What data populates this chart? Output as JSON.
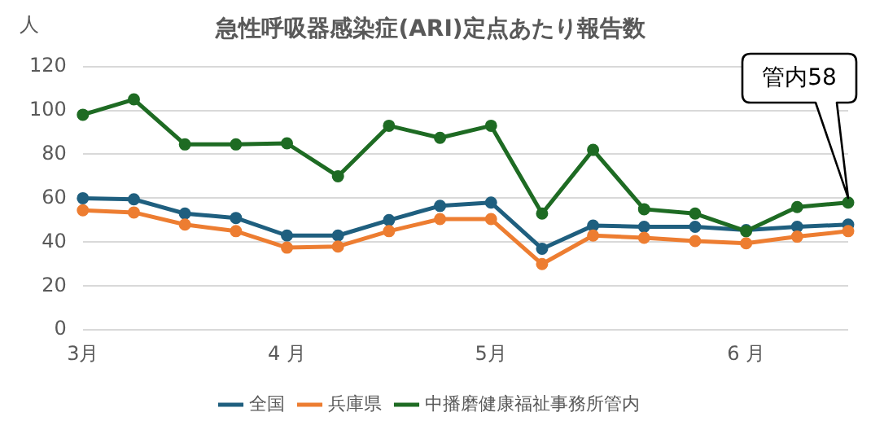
{
  "chart_data": {
    "type": "line",
    "title": "急性呼吸器感染症(ARI)定点あたり報告数",
    "ylabel": "人",
    "categories": [
      "3月",
      null,
      null,
      null,
      "4 月",
      null,
      null,
      null,
      "5月",
      null,
      null,
      null,
      null,
      "6 月",
      null,
      null
    ],
    "series": [
      {
        "name": "全国",
        "color": "#1f5f7f",
        "values": [
          60,
          59.5,
          53,
          51,
          43,
          43,
          50,
          56.5,
          58,
          37,
          47.5,
          47,
          47,
          45.5,
          47,
          48
        ]
      },
      {
        "name": "兵庫県",
        "color": "#ed7d31",
        "values": [
          54.5,
          53.5,
          48,
          45,
          37.5,
          38,
          45,
          50.5,
          50.5,
          30,
          43,
          42,
          40.5,
          39.5,
          42.5,
          45
        ]
      },
      {
        "name": "中播磨健康福祉事務所管内",
        "color": "#1e6b23",
        "values": [
          98,
          105,
          84.5,
          84.5,
          85,
          70,
          93,
          87.5,
          93,
          53,
          82,
          55,
          53,
          45,
          56,
          58
        ]
      }
    ],
    "ylim": [
      0,
      120
    ],
    "yticks": [
      0,
      20,
      40,
      60,
      80,
      100,
      120
    ],
    "grid": "y",
    "legend": "bottom",
    "marker": "circle",
    "line_style": "solid",
    "annotations": [
      "管内58"
    ]
  }
}
